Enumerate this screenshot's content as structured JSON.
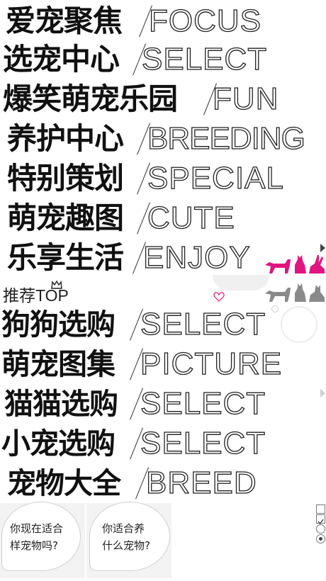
{
  "menu": [
    {
      "zh": "爱宠聚焦",
      "en": "FOCUS"
    },
    {
      "zh": "选宠中心",
      "en": "SELECT"
    },
    {
      "zh": "爆笑萌宠乐园",
      "en": "FUN"
    },
    {
      "zh": "养护中心",
      "en": "BREEDING"
    },
    {
      "zh": "特别策划",
      "en": "SPECIAL"
    },
    {
      "zh": "萌宠趣图",
      "en": "CUTE"
    },
    {
      "zh": "乐享生活",
      "en": "ENJOY"
    }
  ],
  "top": {
    "title": "推荐TOP"
  },
  "shop": [
    {
      "zh": "狗狗选购",
      "en": "SELECT"
    },
    {
      "zh": "萌宠图集",
      "en": "PICTURE"
    },
    {
      "zh": "猫猫选购",
      "en": "SELECT"
    },
    {
      "zh": "小宠选购",
      "en": "SELECT"
    },
    {
      "zh": "宠物大全",
      "en": "BREED"
    }
  ],
  "bubbles": [
    {
      "line1": "你现在适合",
      "line2": "样宠物吗?"
    },
    {
      "line1": "你适合养",
      "line2": "什么宠物?"
    }
  ],
  "colors": {
    "accent": "#e0157f",
    "gray": "#8a8a8a"
  },
  "icons": [
    "crown-icon",
    "heart-icon",
    "dog-icon",
    "cat-icon",
    "rabbit-icon",
    "arrow-right-icon",
    "checkbox-icon",
    "radio-icon"
  ]
}
